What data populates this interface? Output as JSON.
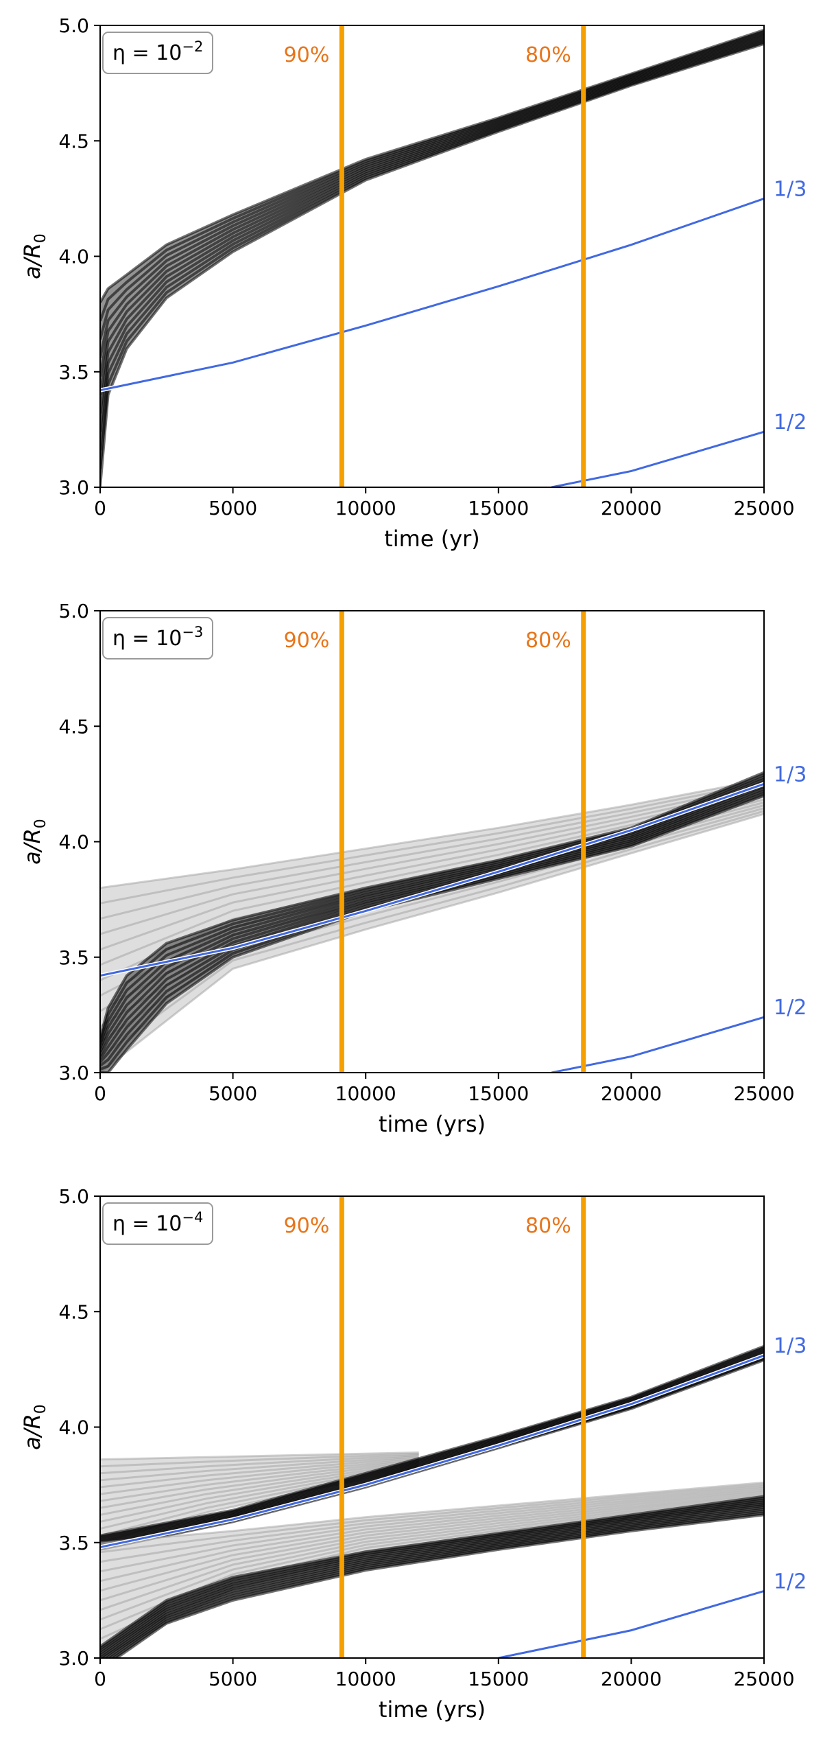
{
  "figure": {
    "colors": {
      "vline": "#f5a000",
      "percent_text": "#e8751a",
      "resonance": "#4169e1",
      "band_dark": "#000000",
      "band_light": "#b0b0b0"
    },
    "panels": [
      {
        "eta_base": "η = 10",
        "eta_exp": "−2",
        "xlabel": "time  (yr)",
        "ylabel_main": "a/R",
        "ylabel_sub": "0"
      },
      {
        "eta_base": "η = 10",
        "eta_exp": "−3",
        "xlabel": "time  (yrs)",
        "ylabel_main": "a/R",
        "ylabel_sub": "0"
      },
      {
        "eta_base": "η = 10",
        "eta_exp": "−4",
        "xlabel": "time  (yrs)",
        "ylabel_main": "a/R",
        "ylabel_sub": "0"
      }
    ]
  },
  "chart_data": [
    {
      "type": "line",
      "annotation": "η=10^-2",
      "xlabel": "time  (yr)",
      "ylabel": "a/R_0",
      "xlim": [
        0,
        25000
      ],
      "ylim": [
        3.0,
        5.0
      ],
      "xticks": [
        0,
        5000,
        10000,
        15000,
        20000,
        25000
      ],
      "yticks": [
        3.0,
        3.5,
        4.0,
        4.5,
        5.0
      ],
      "vlines": [
        {
          "x": 9100,
          "label": "90%"
        },
        {
          "x": 18200,
          "label": "80%"
        }
      ],
      "resonances": [
        {
          "label": "1/3",
          "x": [
            0,
            5000,
            10000,
            15000,
            20000,
            25000
          ],
          "y": [
            3.42,
            3.54,
            3.7,
            3.87,
            4.05,
            4.25
          ]
        },
        {
          "label": "1/2",
          "x": [
            17000,
            20000,
            25000
          ],
          "y": [
            3.0,
            3.07,
            3.24
          ]
        }
      ],
      "bands": [
        {
          "x": [
            0,
            300,
            1000,
            2500,
            5000,
            10000,
            15000,
            20000,
            25000
          ],
          "y_lower": [
            3.0,
            3.4,
            3.6,
            3.82,
            4.02,
            4.33,
            4.54,
            4.74,
            4.92
          ],
          "y_upper": [
            3.8,
            3.86,
            3.92,
            4.05,
            4.18,
            4.42,
            4.6,
            4.79,
            4.98
          ],
          "style": "dark"
        }
      ]
    },
    {
      "type": "line",
      "annotation": "η=10^-3",
      "xlabel": "time  (yrs)",
      "ylabel": "a/R_0",
      "xlim": [
        0,
        25000
      ],
      "ylim": [
        3.0,
        5.0
      ],
      "xticks": [
        0,
        5000,
        10000,
        15000,
        20000,
        25000
      ],
      "yticks": [
        3.0,
        3.5,
        4.0,
        4.5,
        5.0
      ],
      "vlines": [
        {
          "x": 9100,
          "label": "90%"
        },
        {
          "x": 18200,
          "label": "80%"
        }
      ],
      "resonances": [
        {
          "label": "1/3",
          "x": [
            0,
            5000,
            10000,
            15000,
            20000,
            25000
          ],
          "y": [
            3.42,
            3.54,
            3.7,
            3.87,
            4.05,
            4.25
          ]
        },
        {
          "label": "1/2",
          "x": [
            17000,
            20000,
            25000
          ],
          "y": [
            3.0,
            3.07,
            3.24
          ]
        }
      ],
      "bands": [
        {
          "x": [
            0,
            5000,
            10000,
            15000,
            20000,
            25000
          ],
          "y_lower": [
            3.0,
            3.45,
            3.62,
            3.78,
            3.95,
            4.12
          ],
          "y_upper": [
            3.8,
            3.88,
            3.97,
            4.06,
            4.16,
            4.27
          ],
          "style": "light"
        },
        {
          "x": [
            0,
            300,
            1000,
            2500,
            5000,
            10000,
            15000,
            20000,
            25000
          ],
          "y_lower": [
            3.0,
            3.0,
            3.1,
            3.3,
            3.5,
            3.7,
            3.84,
            3.98,
            4.2
          ],
          "y_upper": [
            3.15,
            3.28,
            3.42,
            3.56,
            3.66,
            3.8,
            3.92,
            4.06,
            4.3
          ],
          "style": "dark"
        }
      ]
    },
    {
      "type": "line",
      "annotation": "η=10^-4",
      "xlabel": "time  (yrs)",
      "ylabel": "a/R_0",
      "xlim": [
        0,
        25000
      ],
      "ylim": [
        3.0,
        5.0
      ],
      "xticks": [
        0,
        5000,
        10000,
        15000,
        20000,
        25000
      ],
      "yticks": [
        3.0,
        3.5,
        4.0,
        4.5,
        5.0
      ],
      "vlines": [
        {
          "x": 9100,
          "label": "90%"
        },
        {
          "x": 18200,
          "label": "80%"
        }
      ],
      "resonances": [
        {
          "label": "1/3",
          "x": [
            0,
            5000,
            10000,
            15000,
            20000,
            25000
          ],
          "y": [
            3.48,
            3.6,
            3.75,
            3.92,
            4.1,
            4.31
          ]
        },
        {
          "label": "1/2",
          "x": [
            15000,
            20000,
            25000
          ],
          "y": [
            3.0,
            3.12,
            3.29
          ]
        }
      ],
      "bands": [
        {
          "x": [
            0,
            4000,
            8000,
            12000
          ],
          "y_lower": [
            3.5,
            3.63,
            3.73,
            3.82
          ],
          "y_upper": [
            3.86,
            3.87,
            3.88,
            3.89
          ],
          "style": "light"
        },
        {
          "x": [
            0,
            5000,
            10000,
            15000,
            20000,
            25000
          ],
          "y_lower": [
            3.47,
            3.59,
            3.74,
            3.91,
            4.08,
            4.29
          ],
          "y_upper": [
            3.53,
            3.64,
            3.8,
            3.96,
            4.13,
            4.35
          ],
          "style": "dark"
        },
        {
          "x": [
            0,
            5000,
            10000,
            15000,
            20000,
            25000
          ],
          "y_lower": [
            3.0,
            3.3,
            3.45,
            3.53,
            3.6,
            3.66
          ],
          "y_upper": [
            3.5,
            3.55,
            3.61,
            3.66,
            3.71,
            3.76
          ],
          "style": "light"
        },
        {
          "x": [
            0,
            2500,
            5000,
            10000,
            15000,
            20000,
            25000
          ],
          "y_lower": [
            2.95,
            3.15,
            3.25,
            3.38,
            3.47,
            3.55,
            3.62
          ],
          "y_upper": [
            3.05,
            3.25,
            3.35,
            3.46,
            3.54,
            3.62,
            3.7
          ],
          "style": "dark"
        }
      ]
    }
  ]
}
